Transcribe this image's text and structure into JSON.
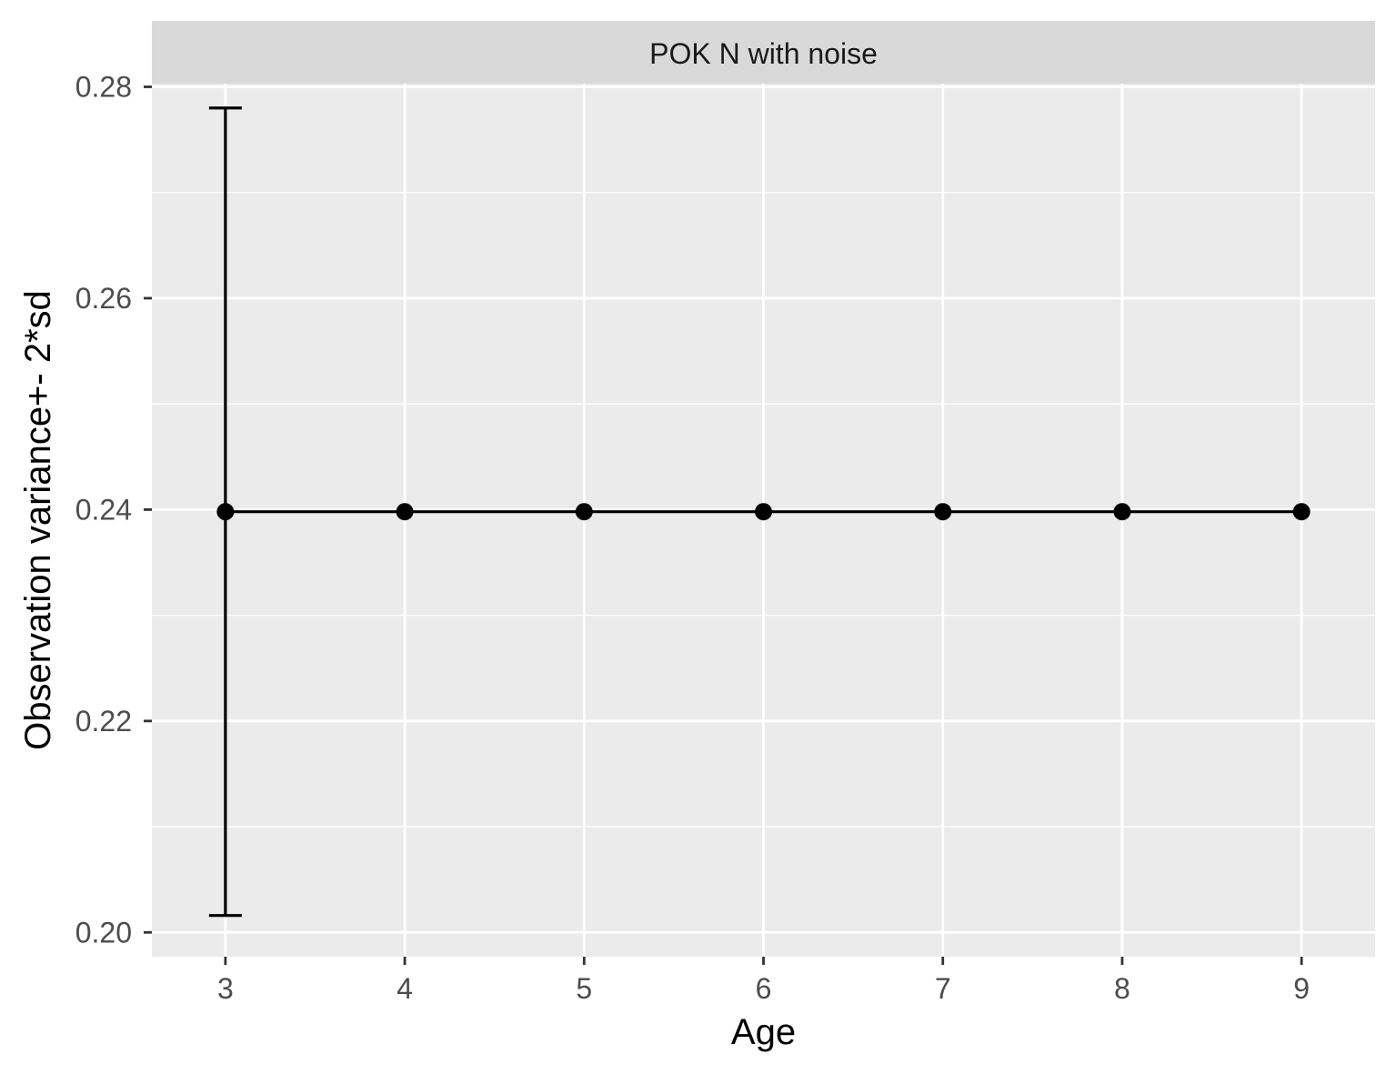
{
  "chart_data": {
    "type": "line",
    "facet_title": "POK N with noise",
    "xlabel": "Age",
    "ylabel": "Observation variance+- 2*sd",
    "x": [
      3,
      4,
      5,
      6,
      7,
      8,
      9
    ],
    "x_tick_labels": [
      "3",
      "4",
      "5",
      "6",
      "7",
      "8",
      "9"
    ],
    "xlim": [
      2.59,
      9.41
    ],
    "ylim": [
      0.1977,
      0.2803
    ],
    "y_ticks": [
      0.2,
      0.22,
      0.24,
      0.26,
      0.28
    ],
    "y_tick_labels": [
      "0.20",
      "0.22",
      "0.24",
      "0.26",
      "0.28"
    ],
    "y_minor_ticks": [
      0.21,
      0.23,
      0.25,
      0.27
    ],
    "series": [
      {
        "values": [
          0.2398,
          0.2398,
          0.2398,
          0.2398,
          0.2398,
          0.2398,
          0.2398
        ],
        "error_bars": [
          {
            "x": 3,
            "lower": 0.2016,
            "upper": 0.278
          }
        ]
      }
    ],
    "grid": true,
    "legend": "none",
    "colors": {
      "panel_background": "#ebebeb",
      "strip_background": "#d9d9d9",
      "grid": "#ffffff",
      "series": "#000000",
      "tick_mark": "#333333"
    }
  }
}
